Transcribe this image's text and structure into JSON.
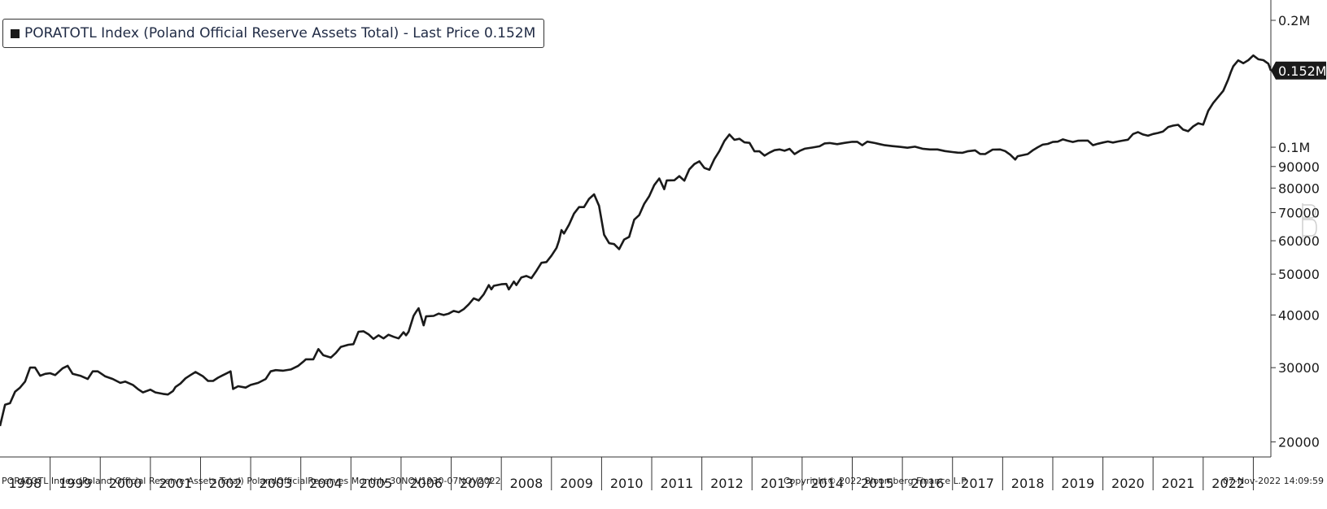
{
  "legend": {
    "label": "PORATOTL Index (Poland Official Reserve Assets Total) - Last Price 0.152M"
  },
  "last_value_badge": "0.152M",
  "footer": {
    "left": "PORATOTL Index (Poland Official Reserve Assets Total) PolandOfficialReserves  Monthly 30NOV1930-07NOV2022",
    "center": "Copyright© 2022 Bloomberg Finance L.P.",
    "right": "07-Nov-2022 14:09:59"
  },
  "colors": {
    "line": "#1a1a1a",
    "badge_bg": "#1a1a1a",
    "badge_text": "#ffffff",
    "axis": "#333333"
  },
  "chart_data": {
    "type": "line",
    "title": "",
    "xlabel": "",
    "ylabel": "",
    "y_scale": "log",
    "ylim": [
      18500,
      210000
    ],
    "xlim": [
      1997.5,
      2022.85
    ],
    "grid": false,
    "legend_position": "top-left",
    "x_ticks": [
      "1998",
      "1999",
      "2000",
      "2001",
      "2002",
      "2003",
      "2004",
      "2005",
      "2006",
      "2007",
      "2008",
      "2009",
      "2010",
      "2011",
      "2012",
      "2013",
      "2014",
      "2015",
      "2016",
      "2017",
      "2018",
      "2019",
      "2020",
      "2021",
      "2022"
    ],
    "y_ticks": [
      {
        "value": 200000,
        "label": "0.2M"
      },
      {
        "value": 100000,
        "label": "0.1M"
      },
      {
        "value": 90000,
        "label": "90000"
      },
      {
        "value": 80000,
        "label": "80000"
      },
      {
        "value": 70000,
        "label": "70000"
      },
      {
        "value": 60000,
        "label": "60000"
      },
      {
        "value": 50000,
        "label": "50000"
      },
      {
        "value": 40000,
        "label": "40000"
      },
      {
        "value": 30000,
        "label": "30000"
      },
      {
        "value": 20000,
        "label": "20000"
      }
    ],
    "series": [
      {
        "name": "PORATOTL Index (Poland Official Reserve Assets Total) - Last Price 0.152M",
        "points": [
          [
            1997.5,
            21800
          ],
          [
            1997.6,
            24500
          ],
          [
            1997.7,
            24700
          ],
          [
            1997.8,
            26300
          ],
          [
            1997.9,
            26900
          ],
          [
            1998.0,
            27800
          ],
          [
            1998.1,
            30000
          ],
          [
            1998.2,
            30000
          ],
          [
            1998.3,
            28700
          ],
          [
            1998.4,
            29000
          ],
          [
            1998.5,
            29100
          ],
          [
            1998.6,
            28800
          ],
          [
            1998.75,
            29900
          ],
          [
            1998.85,
            30300
          ],
          [
            1998.95,
            29000
          ],
          [
            1999.1,
            28700
          ],
          [
            1999.25,
            28200
          ],
          [
            1999.35,
            29400
          ],
          [
            1999.45,
            29400
          ],
          [
            1999.6,
            28600
          ],
          [
            1999.75,
            28200
          ],
          [
            1999.9,
            27600
          ],
          [
            2000.0,
            27800
          ],
          [
            2000.15,
            27300
          ],
          [
            2000.25,
            26700
          ],
          [
            2000.35,
            26200
          ],
          [
            2000.5,
            26600
          ],
          [
            2000.6,
            26200
          ],
          [
            2000.75,
            26000
          ],
          [
            2000.85,
            25900
          ],
          [
            2000.95,
            26400
          ],
          [
            2001.0,
            27000
          ],
          [
            2001.1,
            27500
          ],
          [
            2001.2,
            28300
          ],
          [
            2001.3,
            28800
          ],
          [
            2001.4,
            29300
          ],
          [
            2001.55,
            28600
          ],
          [
            2001.65,
            27900
          ],
          [
            2001.75,
            27900
          ],
          [
            2001.85,
            28400
          ],
          [
            2001.95,
            28800
          ],
          [
            2002.0,
            29000
          ],
          [
            2002.1,
            29400
          ],
          [
            2002.15,
            26700
          ],
          [
            2002.25,
            27100
          ],
          [
            2002.4,
            26900
          ],
          [
            2002.5,
            27300
          ],
          [
            2002.65,
            27600
          ],
          [
            2002.8,
            28200
          ],
          [
            2002.9,
            29400
          ],
          [
            2003.0,
            29600
          ],
          [
            2003.15,
            29500
          ],
          [
            2003.3,
            29700
          ],
          [
            2003.45,
            30300
          ],
          [
            2003.55,
            31000
          ],
          [
            2003.6,
            31400
          ],
          [
            2003.75,
            31400
          ],
          [
            2003.85,
            33200
          ],
          [
            2003.95,
            32100
          ],
          [
            2004.1,
            31700
          ],
          [
            2004.2,
            32500
          ],
          [
            2004.3,
            33600
          ],
          [
            2004.45,
            34000
          ],
          [
            2004.55,
            34100
          ],
          [
            2004.65,
            36500
          ],
          [
            2004.75,
            36600
          ],
          [
            2004.85,
            36000
          ],
          [
            2004.95,
            35100
          ],
          [
            2005.05,
            35800
          ],
          [
            2005.15,
            35200
          ],
          [
            2005.25,
            35900
          ],
          [
            2005.35,
            35500
          ],
          [
            2005.45,
            35200
          ],
          [
            2005.55,
            36400
          ],
          [
            2005.6,
            35800
          ],
          [
            2005.65,
            36500
          ],
          [
            2005.75,
            39800
          ],
          [
            2005.8,
            40700
          ],
          [
            2005.85,
            41500
          ],
          [
            2005.95,
            37800
          ],
          [
            2006.0,
            39700
          ],
          [
            2006.15,
            39800
          ],
          [
            2006.25,
            40300
          ],
          [
            2006.35,
            40000
          ],
          [
            2006.45,
            40300
          ],
          [
            2006.55,
            40900
          ],
          [
            2006.65,
            40600
          ],
          [
            2006.75,
            41300
          ],
          [
            2006.85,
            42400
          ],
          [
            2006.95,
            43800
          ],
          [
            2007.05,
            43300
          ],
          [
            2007.15,
            44800
          ],
          [
            2007.25,
            47100
          ],
          [
            2007.3,
            46000
          ],
          [
            2007.35,
            46900
          ],
          [
            2007.5,
            47300
          ],
          [
            2007.6,
            47400
          ],
          [
            2007.65,
            46000
          ],
          [
            2007.75,
            48000
          ],
          [
            2007.8,
            47100
          ],
          [
            2007.9,
            49100
          ],
          [
            2008.0,
            49500
          ],
          [
            2008.1,
            48900
          ],
          [
            2008.2,
            50900
          ],
          [
            2008.3,
            53200
          ],
          [
            2008.4,
            53400
          ],
          [
            2008.5,
            55300
          ],
          [
            2008.6,
            57700
          ],
          [
            2008.65,
            60000
          ],
          [
            2008.7,
            63600
          ],
          [
            2008.75,
            62400
          ],
          [
            2008.85,
            65500
          ],
          [
            2008.95,
            69600
          ],
          [
            2009.05,
            72100
          ],
          [
            2009.15,
            72100
          ],
          [
            2009.25,
            75400
          ],
          [
            2009.35,
            77300
          ],
          [
            2009.45,
            72600
          ],
          [
            2009.55,
            62000
          ],
          [
            2009.65,
            59200
          ],
          [
            2009.75,
            58900
          ],
          [
            2009.85,
            57300
          ],
          [
            2009.95,
            60400
          ],
          [
            2010.05,
            61300
          ],
          [
            2010.15,
            67300
          ],
          [
            2010.25,
            69000
          ],
          [
            2010.35,
            73400
          ],
          [
            2010.45,
            76500
          ],
          [
            2010.55,
            81300
          ],
          [
            2010.65,
            84300
          ],
          [
            2010.75,
            79500
          ],
          [
            2010.8,
            83400
          ],
          [
            2010.95,
            83500
          ],
          [
            2011.05,
            85400
          ],
          [
            2011.15,
            83300
          ],
          [
            2011.25,
            88600
          ],
          [
            2011.35,
            91200
          ],
          [
            2011.45,
            92600
          ],
          [
            2011.55,
            89300
          ],
          [
            2011.65,
            88400
          ],
          [
            2011.75,
            93700
          ],
          [
            2011.85,
            97900
          ],
          [
            2011.9,
            100700
          ],
          [
            2011.95,
            103500
          ],
          [
            2012.05,
            107200
          ],
          [
            2012.15,
            104100
          ],
          [
            2012.25,
            104700
          ],
          [
            2012.35,
            102700
          ],
          [
            2012.45,
            102400
          ],
          [
            2012.55,
            97800
          ],
          [
            2012.65,
            97800
          ],
          [
            2012.75,
            95500
          ],
          [
            2012.85,
            97100
          ],
          [
            2012.95,
            98400
          ],
          [
            2013.05,
            98800
          ],
          [
            2013.15,
            98100
          ],
          [
            2013.25,
            99100
          ],
          [
            2013.35,
            96300
          ],
          [
            2013.45,
            98000
          ],
          [
            2013.55,
            99200
          ],
          [
            2013.7,
            99800
          ],
          [
            2013.85,
            100500
          ],
          [
            2013.95,
            102100
          ],
          [
            2014.05,
            102300
          ],
          [
            2014.2,
            101700
          ],
          [
            2014.35,
            102400
          ],
          [
            2014.5,
            103000
          ],
          [
            2014.6,
            103000
          ],
          [
            2014.7,
            101100
          ],
          [
            2014.8,
            103100
          ],
          [
            2014.95,
            102300
          ],
          [
            2015.05,
            101700
          ],
          [
            2015.15,
            101100
          ],
          [
            2015.3,
            100600
          ],
          [
            2015.45,
            100200
          ],
          [
            2015.6,
            99700
          ],
          [
            2015.75,
            100300
          ],
          [
            2015.9,
            99200
          ],
          [
            2016.05,
            98800
          ],
          [
            2016.2,
            98800
          ],
          [
            2016.35,
            97900
          ],
          [
            2016.5,
            97400
          ],
          [
            2016.6,
            97100
          ],
          [
            2016.7,
            97000
          ],
          [
            2016.8,
            97800
          ],
          [
            2016.95,
            98300
          ],
          [
            2017.05,
            96400
          ],
          [
            2017.15,
            96300
          ],
          [
            2017.3,
            98700
          ],
          [
            2017.45,
            98800
          ],
          [
            2017.55,
            97900
          ],
          [
            2017.65,
            96000
          ],
          [
            2017.75,
            93500
          ],
          [
            2017.8,
            95200
          ],
          [
            2018.0,
            96300
          ],
          [
            2018.1,
            98300
          ],
          [
            2018.2,
            100000
          ],
          [
            2018.3,
            101400
          ],
          [
            2018.4,
            101800
          ],
          [
            2018.5,
            102900
          ],
          [
            2018.6,
            103100
          ],
          [
            2018.7,
            104400
          ],
          [
            2018.8,
            103600
          ],
          [
            2018.9,
            102900
          ],
          [
            2019.0,
            103600
          ],
          [
            2019.1,
            103700
          ],
          [
            2019.2,
            103700
          ],
          [
            2019.3,
            101100
          ],
          [
            2019.4,
            101900
          ],
          [
            2019.5,
            102600
          ],
          [
            2019.6,
            103200
          ],
          [
            2019.7,
            102600
          ],
          [
            2019.8,
            103200
          ],
          [
            2019.9,
            103700
          ],
          [
            2020.0,
            104200
          ],
          [
            2020.1,
            107500
          ],
          [
            2020.2,
            108600
          ],
          [
            2020.3,
            107200
          ],
          [
            2020.4,
            106500
          ],
          [
            2020.5,
            107500
          ],
          [
            2020.6,
            108100
          ],
          [
            2020.7,
            109000
          ],
          [
            2020.8,
            111600
          ],
          [
            2020.9,
            112500
          ],
          [
            2021.0,
            113000
          ],
          [
            2021.1,
            110100
          ],
          [
            2021.2,
            109100
          ],
          [
            2021.3,
            112000
          ],
          [
            2021.4,
            114000
          ],
          [
            2021.5,
            113100
          ],
          [
            2021.6,
            122000
          ],
          [
            2021.7,
            127300
          ],
          [
            2021.8,
            131600
          ],
          [
            2021.9,
            136100
          ],
          [
            2022.0,
            144900
          ],
          [
            2022.05,
            150600
          ],
          [
            2022.1,
            155600
          ],
          [
            2022.2,
            160700
          ],
          [
            2022.3,
            158200
          ],
          [
            2022.4,
            160900
          ],
          [
            2022.5,
            165100
          ],
          [
            2022.6,
            161700
          ],
          [
            2022.7,
            160900
          ],
          [
            2022.8,
            157800
          ],
          [
            2022.85,
            152000
          ]
        ]
      }
    ]
  }
}
